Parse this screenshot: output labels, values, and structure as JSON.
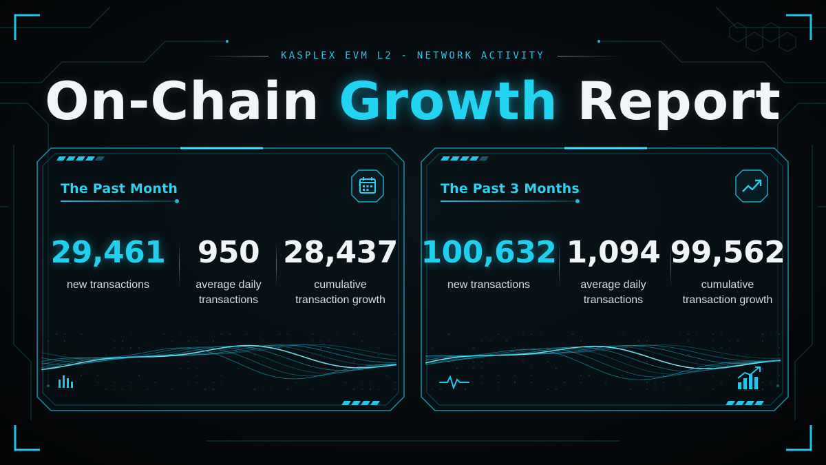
{
  "header": {
    "eyebrow": "KASPLEX EVM L2 - NETWORK ACTIVITY",
    "title_part1": "On-Chain ",
    "title_accent": "Growth",
    "title_part2": " Report"
  },
  "colors": {
    "accent": "#22d4f0",
    "background": "#05080b",
    "text": "#f1f4f6"
  },
  "panels": [
    {
      "title": "The Past Month",
      "icon": "calendar-icon",
      "footer_icon": "bar-chart-icon",
      "stats": [
        {
          "value": "29,461",
          "label_line1": "new transactions",
          "label_line2": ""
        },
        {
          "value": "950",
          "label_line1": "average daily",
          "label_line2": "transactions"
        },
        {
          "value": "28,437",
          "label_line1": "cumulative",
          "label_line2": "transaction growth"
        }
      ]
    },
    {
      "title": "The Past 3 Months",
      "icon": "trend-up-icon",
      "footer_icon": "pulse-icon",
      "footer_icon_right": "growth-bars-icon",
      "stats": [
        {
          "value": "100,632",
          "label_line1": "new transactions",
          "label_line2": ""
        },
        {
          "value": "1,094",
          "label_line1": "average daily",
          "label_line2": "transactions"
        },
        {
          "value": "99,562",
          "label_line1": "cumulative",
          "label_line2": "transaction growth"
        }
      ]
    }
  ]
}
